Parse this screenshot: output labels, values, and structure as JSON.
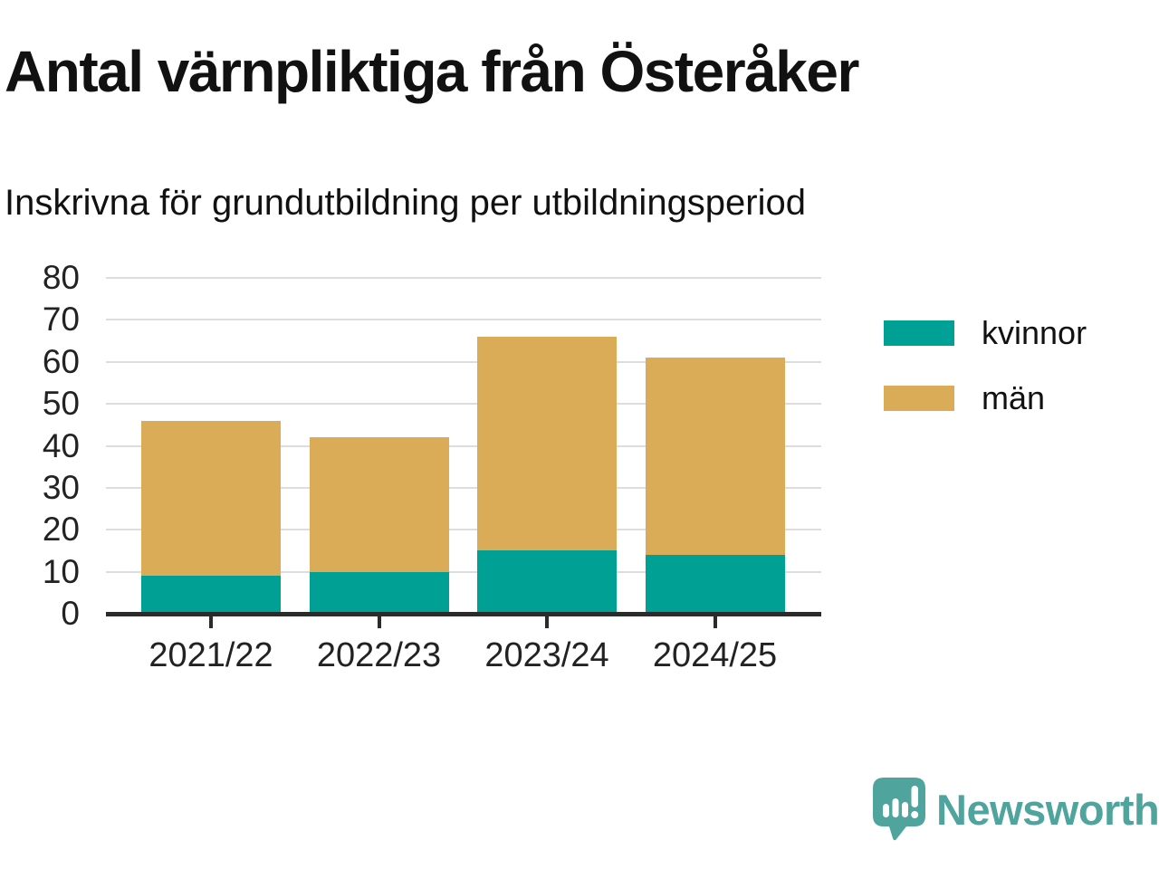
{
  "title": "Antal värnpliktiga från Österåker",
  "subtitle": "Inskrivna för grundutbildning per utbildningsperiod",
  "chart_data": {
    "type": "bar",
    "stacked": true,
    "title": "Antal värnpliktiga från Österåker",
    "subtitle": "Inskrivna för grundutbildning per utbildningsperiod",
    "categories": [
      "2021/22",
      "2022/23",
      "2023/24",
      "2024/25"
    ],
    "series": [
      {
        "name": "kvinnor",
        "color": "#00A195",
        "values": [
          9,
          10,
          15,
          14
        ]
      },
      {
        "name": "män",
        "color": "#DBAC57",
        "values": [
          37,
          32,
          51,
          47
        ]
      }
    ],
    "stack_totals": [
      46,
      42,
      66,
      61
    ],
    "xlabel": "",
    "ylabel": "",
    "ylim": [
      0,
      80
    ],
    "yticks": [
      0,
      10,
      20,
      30,
      40,
      50,
      60,
      70,
      80
    ],
    "grid": "horizontal",
    "legend_position": "right"
  },
  "legend": {
    "items": [
      {
        "label": "kvinnor",
        "color": "#00A195"
      },
      {
        "label": "män",
        "color": "#DBAC57"
      }
    ]
  },
  "branding": {
    "name": "Newsworthy",
    "color": "#4FA49E",
    "icon": "newsworthy-logo-icon"
  },
  "colors": {
    "axis": "#2B2B2B",
    "gridline": "#DDDDDD",
    "title_text": "#111111",
    "tick_label": "#222222"
  }
}
